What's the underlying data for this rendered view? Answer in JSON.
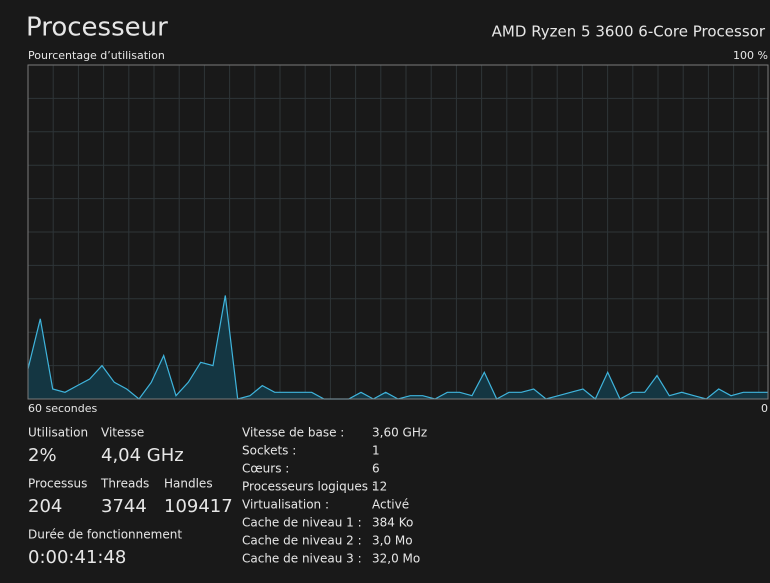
{
  "header": {
    "title": "Processeur",
    "subtitle": "AMD Ryzen 5 3600 6-Core Processor"
  },
  "chart_data": {
    "type": "area",
    "ylabel": "Pourcentage d’utilisation",
    "x": [
      60,
      59,
      58,
      57,
      56,
      55,
      54,
      53,
      52,
      51,
      50,
      49,
      48,
      47,
      46,
      45,
      44,
      43,
      42,
      41,
      40,
      39,
      38,
      37,
      36,
      35,
      34,
      33,
      32,
      31,
      30,
      29,
      28,
      27,
      26,
      25,
      24,
      23,
      22,
      21,
      20,
      19,
      18,
      17,
      16,
      15,
      14,
      13,
      12,
      11,
      10,
      9,
      8,
      7,
      6,
      5,
      4,
      3,
      2,
      1,
      0
    ],
    "values": [
      9,
      24,
      3,
      2,
      4,
      6,
      10,
      5,
      3,
      0,
      5,
      13,
      1,
      5,
      11,
      10,
      31,
      0,
      1,
      4,
      2,
      2,
      2,
      2,
      0,
      0,
      0,
      2,
      0,
      2,
      0,
      1,
      1,
      0,
      2,
      2,
      1,
      8,
      0,
      2,
      2,
      3,
      0,
      1,
      2,
      3,
      0,
      8,
      0,
      2,
      2,
      7,
      1,
      2,
      1,
      0,
      3,
      1,
      2,
      2,
      2
    ],
    "color": "#3fb4dc",
    "area_color": "#143642",
    "xlim": [
      60,
      0
    ],
    "xticks": [
      {
        "value": 60,
        "label": "60 secondes"
      },
      0
    ],
    "ylim": [
      0,
      100
    ],
    "yticks": [
      {
        "value": 100,
        "label": "100 %"
      }
    ]
  },
  "stats": [
    {
      "label": "Utilisation",
      "value": "2%"
    },
    {
      "label": "Vitesse",
      "value": "4,04 GHz"
    },
    {
      "label": "Processus",
      "value": "204"
    },
    {
      "label": "Threads",
      "value": "3744"
    },
    {
      "label": "Handles",
      "value": "109417"
    },
    {
      "label": "Durée de fonctionnement",
      "value": "0:00:41:48"
    }
  ],
  "details": [
    [
      "Vitesse de base :",
      "3,60 GHz"
    ],
    [
      "Sockets :",
      "1"
    ],
    [
      "Cœurs :",
      "6"
    ],
    [
      "Processeurs logiques :",
      "12"
    ],
    [
      "Virtualisation :",
      "Activé"
    ],
    [
      "Cache de niveau 1 :",
      "384 Ko"
    ],
    [
      "Cache de niveau 2 :",
      "3,0 Mo"
    ],
    [
      "Cache de niveau 3 :",
      "32,0 Mo"
    ]
  ]
}
